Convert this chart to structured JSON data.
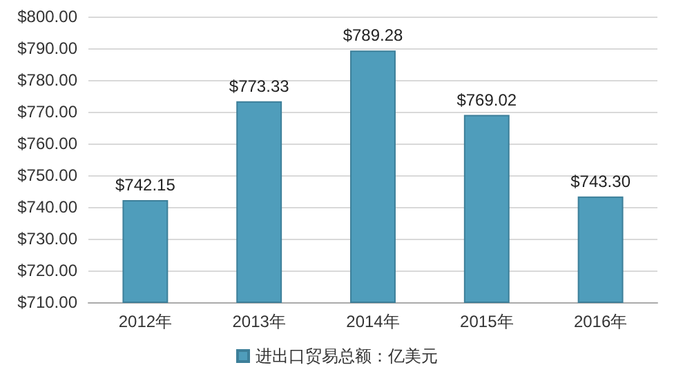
{
  "chart_data": {
    "type": "bar",
    "categories": [
      "2012年",
      "2013年",
      "2014年",
      "2015年",
      "2016年"
    ],
    "series": [
      {
        "name": "进出口贸易总额：亿美元",
        "color": "#4f9dbb",
        "values": [
          742.15,
          773.33,
          789.28,
          769.02,
          743.3
        ],
        "value_labels": [
          "$742.15",
          "$773.33",
          "$789.28",
          "$769.02",
          "$743.30"
        ]
      }
    ],
    "ylim": [
      710,
      800
    ],
    "yticks": [
      {
        "value": 710,
        "label": "$710.00"
      },
      {
        "value": 720,
        "label": "$720.00"
      },
      {
        "value": 730,
        "label": "$730.00"
      },
      {
        "value": 740,
        "label": "$740.00"
      },
      {
        "value": 750,
        "label": "$750.00"
      },
      {
        "value": 760,
        "label": "$760.00"
      },
      {
        "value": 770,
        "label": "$770.00"
      },
      {
        "value": 780,
        "label": "$780.00"
      },
      {
        "value": 790,
        "label": "$790.00"
      },
      {
        "value": 800,
        "label": "$800.00"
      }
    ],
    "grid": "y",
    "legend": "bottom"
  }
}
